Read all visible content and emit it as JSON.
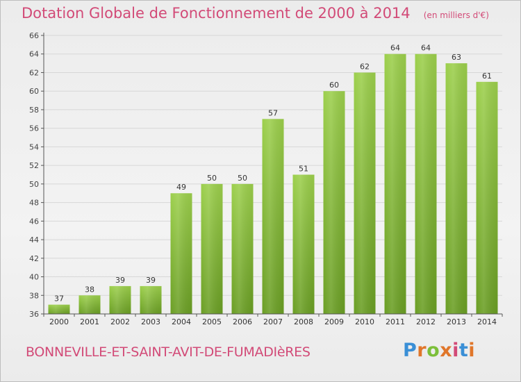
{
  "header": {
    "title": "Dotation Globale de Fonctionnement de 2000 à 2014",
    "unit": "(en milliers d'€)"
  },
  "footer": {
    "commune": "BONNEVILLE-ET-SAINT-AVIT-DE-FUMADIèRES",
    "logo_letters": [
      "P",
      "r",
      "o",
      "x",
      "i",
      "t",
      "i"
    ],
    "logo_colors": [
      "#3a8fd6",
      "#e0762a",
      "#7cbf3a",
      "#e0762a",
      "#d24a77",
      "#3a8fd6",
      "#e0762a"
    ]
  },
  "colors": {
    "bar_light": "#9ccf4c",
    "bar_dark": "#6a9e24",
    "accent": "#d24a77",
    "grid": "#d7d7d7",
    "axis": "#555555"
  },
  "chart_data": {
    "type": "bar",
    "categories": [
      "2000",
      "2001",
      "2002",
      "2003",
      "2004",
      "2005",
      "2006",
      "2007",
      "2008",
      "2009",
      "2010",
      "2011",
      "2012",
      "2013",
      "2014"
    ],
    "values": [
      37,
      38,
      39,
      39,
      49,
      50,
      50,
      57,
      51,
      60,
      62,
      64,
      64,
      63,
      61
    ],
    "ylim": [
      36,
      66
    ],
    "yticks": [
      36,
      38,
      40,
      42,
      44,
      46,
      48,
      50,
      52,
      54,
      56,
      58,
      60,
      62,
      64,
      66
    ],
    "grid": true,
    "data_labels": true
  }
}
